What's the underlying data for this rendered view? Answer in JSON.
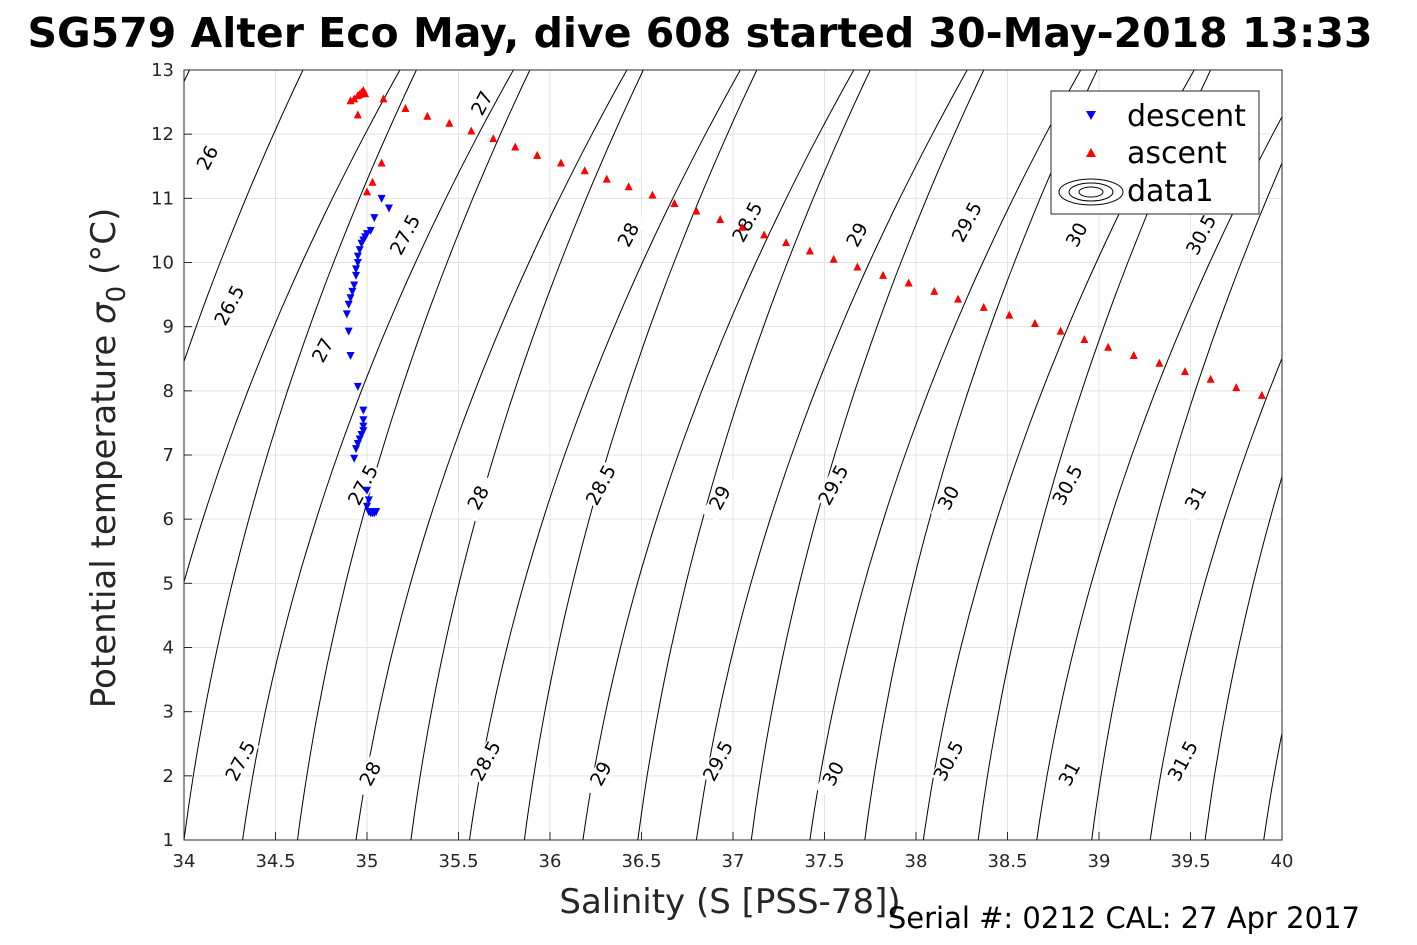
{
  "chart_data": {
    "type": "scatter",
    "title": "SG579 Alter Eco May, dive 608 started 30-May-2018 13:33",
    "xlabel": "Salinity (S [PSS-78])",
    "ylabel_main": "Potential temperature ",
    "ylabel_sym": "σ",
    "ylabel_sub": "0",
    "ylabel_unit": " (°C)",
    "xlim": [
      34,
      40
    ],
    "ylim": [
      1,
      13
    ],
    "xticks": [
      "34",
      "34.5",
      "35",
      "35.5",
      "36",
      "36.5",
      "37",
      "37.5",
      "38",
      "38.5",
      "39",
      "39.5",
      "40"
    ],
    "yticks": [
      "1",
      "2",
      "3",
      "4",
      "5",
      "6",
      "7",
      "8",
      "9",
      "10",
      "11",
      "12",
      "13"
    ],
    "grid": true,
    "legend_position": "top-right",
    "legend": [
      "descent",
      "ascent",
      "data1"
    ],
    "series": [
      {
        "name": "descent",
        "color": "#0000ff",
        "marker": "triangle-down",
        "points": [
          [
            35.12,
            10.85
          ],
          [
            35.08,
            11.0
          ],
          [
            35.04,
            10.7
          ],
          [
            35.02,
            10.5
          ],
          [
            35.0,
            10.45
          ],
          [
            34.99,
            10.4
          ],
          [
            34.98,
            10.35
          ],
          [
            34.97,
            10.3
          ],
          [
            34.96,
            10.2
          ],
          [
            34.95,
            10.1
          ],
          [
            34.95,
            10.0
          ],
          [
            34.94,
            9.9
          ],
          [
            34.94,
            9.8
          ],
          [
            34.93,
            9.65
          ],
          [
            34.92,
            9.55
          ],
          [
            34.91,
            9.45
          ],
          [
            34.9,
            9.35
          ],
          [
            34.89,
            9.2
          ],
          [
            34.9,
            8.93
          ],
          [
            34.91,
            8.55
          ],
          [
            34.95,
            8.07
          ],
          [
            34.98,
            7.7
          ],
          [
            34.98,
            7.55
          ],
          [
            34.98,
            7.45
          ],
          [
            34.98,
            7.38
          ],
          [
            34.97,
            7.32
          ],
          [
            34.96,
            7.25
          ],
          [
            34.95,
            7.18
          ],
          [
            34.94,
            7.1
          ],
          [
            34.93,
            6.95
          ],
          [
            35.0,
            6.45
          ],
          [
            35.01,
            6.3
          ],
          [
            35.0,
            6.2
          ],
          [
            35.01,
            6.12
          ],
          [
            35.02,
            6.1
          ],
          [
            35.03,
            6.1
          ],
          [
            35.04,
            6.1
          ],
          [
            35.05,
            6.12
          ]
        ]
      },
      {
        "name": "ascent",
        "color": "#ff0000",
        "marker": "triangle-up",
        "points": [
          [
            34.91,
            12.52
          ],
          [
            34.93,
            12.55
          ],
          [
            34.95,
            12.6
          ],
          [
            34.96,
            12.62
          ],
          [
            34.97,
            12.65
          ],
          [
            34.98,
            12.68
          ],
          [
            34.99,
            12.63
          ],
          [
            34.95,
            12.3
          ],
          [
            35.09,
            12.55
          ],
          [
            35.21,
            12.4
          ],
          [
            35.33,
            12.28
          ],
          [
            35.45,
            12.17
          ],
          [
            35.57,
            12.05
          ],
          [
            35.69,
            11.93
          ],
          [
            35.81,
            11.8
          ],
          [
            35.93,
            11.67
          ],
          [
            36.06,
            11.55
          ],
          [
            36.19,
            11.43
          ],
          [
            36.31,
            11.3
          ],
          [
            36.43,
            11.18
          ],
          [
            36.56,
            11.05
          ],
          [
            36.68,
            10.92
          ],
          [
            36.8,
            10.8
          ],
          [
            36.93,
            10.67
          ],
          [
            37.05,
            10.55
          ],
          [
            37.17,
            10.43
          ],
          [
            37.29,
            10.31
          ],
          [
            37.42,
            10.18
          ],
          [
            37.55,
            10.05
          ],
          [
            37.68,
            9.93
          ],
          [
            37.82,
            9.8
          ],
          [
            37.96,
            9.68
          ],
          [
            38.1,
            9.55
          ],
          [
            38.23,
            9.43
          ],
          [
            38.37,
            9.3
          ],
          [
            38.51,
            9.18
          ],
          [
            38.65,
            9.05
          ],
          [
            38.79,
            8.93
          ],
          [
            38.92,
            8.8
          ],
          [
            39.05,
            8.68
          ],
          [
            39.19,
            8.55
          ],
          [
            39.33,
            8.43
          ],
          [
            39.47,
            8.3
          ],
          [
            39.61,
            8.18
          ],
          [
            39.75,
            8.05
          ],
          [
            39.89,
            7.93
          ],
          [
            35.08,
            11.55
          ],
          [
            35.03,
            11.25
          ],
          [
            35.0,
            11.1
          ]
        ]
      }
    ],
    "density_contours": {
      "levels": [
        26,
        26.5,
        27,
        27.5,
        28,
        28.5,
        29,
        29.5,
        30,
        30.5,
        31,
        31.5
      ],
      "color": "#000000",
      "labels": [
        {
          "text": "26",
          "x": 34.15,
          "y": 11.6
        },
        {
          "text": "26.5",
          "x": 34.27,
          "y": 9.3
        },
        {
          "text": "27",
          "x": 34.78,
          "y": 8.6
        },
        {
          "text": "27.5",
          "x": 34.33,
          "y": 2.2
        },
        {
          "text": "27.5",
          "x": 35.0,
          "y": 6.5
        },
        {
          "text": "27.5",
          "x": 35.23,
          "y": 10.4
        },
        {
          "text": "27",
          "x": 35.65,
          "y": 12.45
        },
        {
          "text": "28",
          "x": 35.04,
          "y": 2.0
        },
        {
          "text": "28",
          "x": 35.63,
          "y": 6.3
        },
        {
          "text": "28",
          "x": 36.45,
          "y": 10.4
        },
        {
          "text": "28.5",
          "x": 35.67,
          "y": 2.2
        },
        {
          "text": "28.5",
          "x": 36.3,
          "y": 6.5
        },
        {
          "text": "28.5",
          "x": 37.1,
          "y": 10.6
        },
        {
          "text": "29",
          "x": 36.3,
          "y": 2.0
        },
        {
          "text": "29",
          "x": 36.95,
          "y": 6.3
        },
        {
          "text": "29",
          "x": 37.7,
          "y": 10.4
        },
        {
          "text": "29.5",
          "x": 36.94,
          "y": 2.2
        },
        {
          "text": "29.5",
          "x": 37.57,
          "y": 6.5
        },
        {
          "text": "29.5",
          "x": 38.3,
          "y": 10.6
        },
        {
          "text": "30",
          "x": 37.57,
          "y": 2.0
        },
        {
          "text": "30",
          "x": 38.2,
          "y": 6.3
        },
        {
          "text": "30",
          "x": 38.9,
          "y": 10.4
        },
        {
          "text": "30.5",
          "x": 38.2,
          "y": 2.2
        },
        {
          "text": "30.5",
          "x": 38.85,
          "y": 6.5
        },
        {
          "text": "30.5",
          "x": 39.58,
          "y": 10.4
        },
        {
          "text": "31",
          "x": 38.86,
          "y": 2.0
        },
        {
          "text": "31",
          "x": 39.55,
          "y": 6.3
        },
        {
          "text": "31.5",
          "x": 39.48,
          "y": 2.2
        }
      ]
    }
  },
  "footer": {
    "serial": "Serial #: 0212  CAL: 27 Apr 2017"
  }
}
